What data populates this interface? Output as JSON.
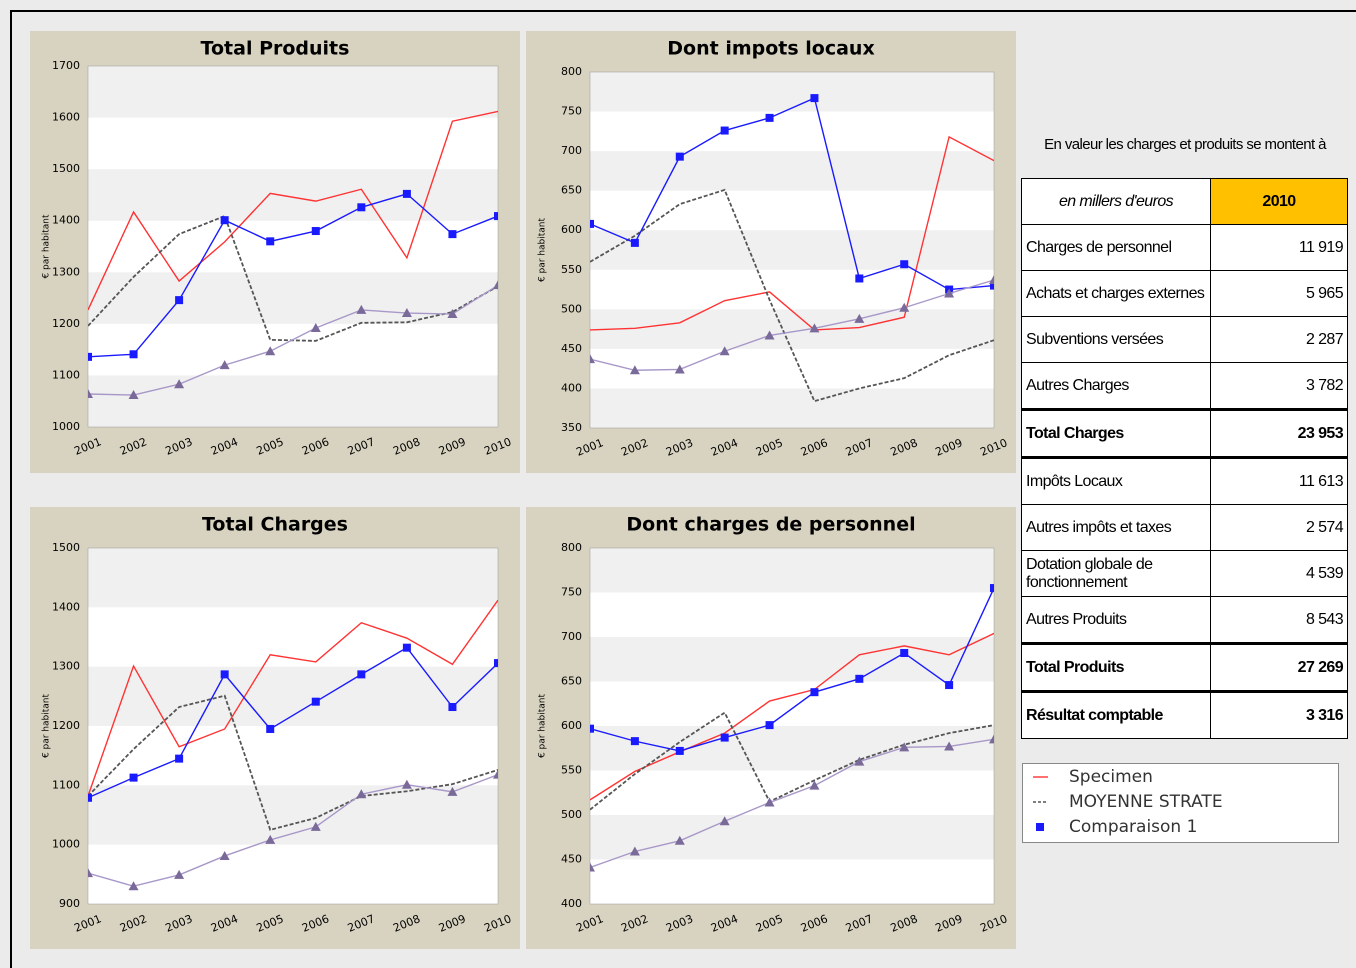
{
  "chart_data": [
    {
      "type": "line",
      "title": "Total Produits",
      "ylabel": "€ par habitant",
      "categories": [
        "2001",
        "2002",
        "2003",
        "2004",
        "2005",
        "2006",
        "2007",
        "2008",
        "2009",
        "2010"
      ],
      "ylim": [
        1000,
        1700
      ],
      "yticks": [
        1000,
        1100,
        1200,
        1300,
        1400,
        1500,
        1600,
        1700
      ],
      "grid": true,
      "series": [
        {
          "color": "#ff3333",
          "values": [
            1227,
            1417,
            1283,
            1359,
            1453,
            1438,
            1461,
            1328,
            1593,
            1612
          ]
        },
        {
          "color": "#555555",
          "dash": true,
          "values": [
            1196,
            1291,
            1374,
            1409,
            1169,
            1167,
            1202,
            1203,
            1223,
            1273
          ]
        },
        {
          "color": "#1a1aff",
          "marker": "square",
          "values": [
            1136,
            1141,
            1246,
            1401,
            1360,
            1380,
            1426,
            1452,
            1374,
            1409
          ]
        },
        {
          "color": "#a898c8",
          "marker": "triangle",
          "marker_color": "#7a6a9a",
          "values": [
            1064,
            1062,
            1083,
            1120,
            1147,
            1192,
            1227,
            1221,
            1219,
            1275
          ]
        }
      ]
    },
    {
      "type": "line",
      "title": "Dont impots locaux",
      "ylabel": "€ par habitant",
      "categories": [
        "2001",
        "2002",
        "2003",
        "2004",
        "2005",
        "2006",
        "2007",
        "2008",
        "2009",
        "2010"
      ],
      "ylim": [
        350,
        800
      ],
      "yticks": [
        350,
        400,
        450,
        500,
        550,
        600,
        650,
        700,
        750,
        800
      ],
      "grid": true,
      "series": [
        {
          "color": "#ff3333",
          "values": [
            474,
            476,
            483,
            511,
            522,
            474,
            477,
            490,
            718,
            688
          ]
        },
        {
          "color": "#555555",
          "dash": true,
          "values": [
            560,
            593,
            633,
            651,
            512,
            384,
            400,
            413,
            442,
            461
          ]
        },
        {
          "color": "#1a1aff",
          "marker": "square",
          "values": [
            608,
            584,
            693,
            726,
            742,
            767,
            539,
            557,
            525,
            530
          ]
        },
        {
          "color": "#a898c8",
          "marker": "triangle",
          "marker_color": "#7a6a9a",
          "values": [
            437,
            423,
            424,
            447,
            467,
            476,
            488,
            502,
            520,
            537
          ]
        }
      ]
    },
    {
      "type": "line",
      "title": "Total Charges",
      "ylabel": "€ par habitant",
      "categories": [
        "2001",
        "2002",
        "2003",
        "2004",
        "2005",
        "2006",
        "2007",
        "2008",
        "2009",
        "2010"
      ],
      "ylim": [
        900,
        1500
      ],
      "yticks": [
        900,
        1000,
        1100,
        1200,
        1300,
        1400,
        1500
      ],
      "grid": true,
      "series": [
        {
          "color": "#ff3333",
          "values": [
            1082,
            1301,
            1165,
            1195,
            1320,
            1308,
            1374,
            1348,
            1304,
            1412
          ]
        },
        {
          "color": "#555555",
          "dash": true,
          "values": [
            1082,
            1161,
            1232,
            1251,
            1025,
            1045,
            1082,
            1090,
            1102,
            1126
          ]
        },
        {
          "color": "#1a1aff",
          "marker": "square",
          "values": [
            1079,
            1113,
            1145,
            1287,
            1195,
            1241,
            1287,
            1332,
            1232,
            1306
          ]
        },
        {
          "color": "#a898c8",
          "marker": "triangle",
          "marker_color": "#7a6a9a",
          "values": [
            952,
            930,
            949,
            981,
            1008,
            1030,
            1085,
            1101,
            1089,
            1118
          ]
        }
      ]
    },
    {
      "type": "line",
      "title": "Dont charges de personnel",
      "ylabel": "€ par habitant",
      "categories": [
        "2001",
        "2002",
        "2003",
        "2004",
        "2005",
        "2006",
        "2007",
        "2008",
        "2009",
        "2010"
      ],
      "ylim": [
        400,
        800
      ],
      "yticks": [
        400,
        450,
        500,
        550,
        600,
        650,
        700,
        750,
        800
      ],
      "grid": true,
      "series": [
        {
          "color": "#ff3333",
          "values": [
            517,
            549,
            571,
            592,
            628,
            641,
            680,
            690,
            680,
            704
          ]
        },
        {
          "color": "#555555",
          "dash": true,
          "values": [
            506,
            546,
            582,
            615,
            515,
            539,
            562,
            579,
            592,
            601
          ]
        },
        {
          "color": "#1a1aff",
          "marker": "square",
          "values": [
            597,
            583,
            572,
            587,
            601,
            638,
            653,
            682,
            646,
            755
          ]
        },
        {
          "color": "#a898c8",
          "marker": "triangle",
          "marker_color": "#7a6a9a",
          "values": [
            441,
            459,
            471,
            493,
            514,
            533,
            560,
            576,
            577,
            585
          ]
        }
      ]
    }
  ],
  "legend": {
    "items": [
      {
        "name": "Specimen",
        "color": "#ff3333"
      },
      {
        "name": "MOYENNE STRATE",
        "color": "#555555",
        "dash": true
      },
      {
        "name": "Comparaison 1",
        "color": "#1a1aff",
        "marker": "square"
      }
    ]
  },
  "table": {
    "caption": "En valeur les charges et produits se montent à",
    "header": [
      "en millers d'euros",
      "2010"
    ],
    "rows": [
      {
        "label": "Charges de personnel",
        "value": "11 919"
      },
      {
        "label": "Achats et charges externes",
        "value": "5 965"
      },
      {
        "label": "Subventions versées",
        "value": "2 287"
      },
      {
        "label": "Autres Charges",
        "value": "3 782"
      },
      {
        "label": "Total Charges",
        "value": "23 953",
        "bold": true
      },
      {
        "label": "Impôts Locaux",
        "value": "11 613"
      },
      {
        "label": "Autres impôts et taxes",
        "value": "2 574"
      },
      {
        "label": "Dotation globale de fonctionnement",
        "value": "4 539"
      },
      {
        "label": "Autres Produits",
        "value": "8 543"
      },
      {
        "label": "Total Produits",
        "value": "27 269",
        "bold": true
      },
      {
        "label": "Résultat comptable",
        "value": "3 316",
        "bold": true
      }
    ]
  }
}
